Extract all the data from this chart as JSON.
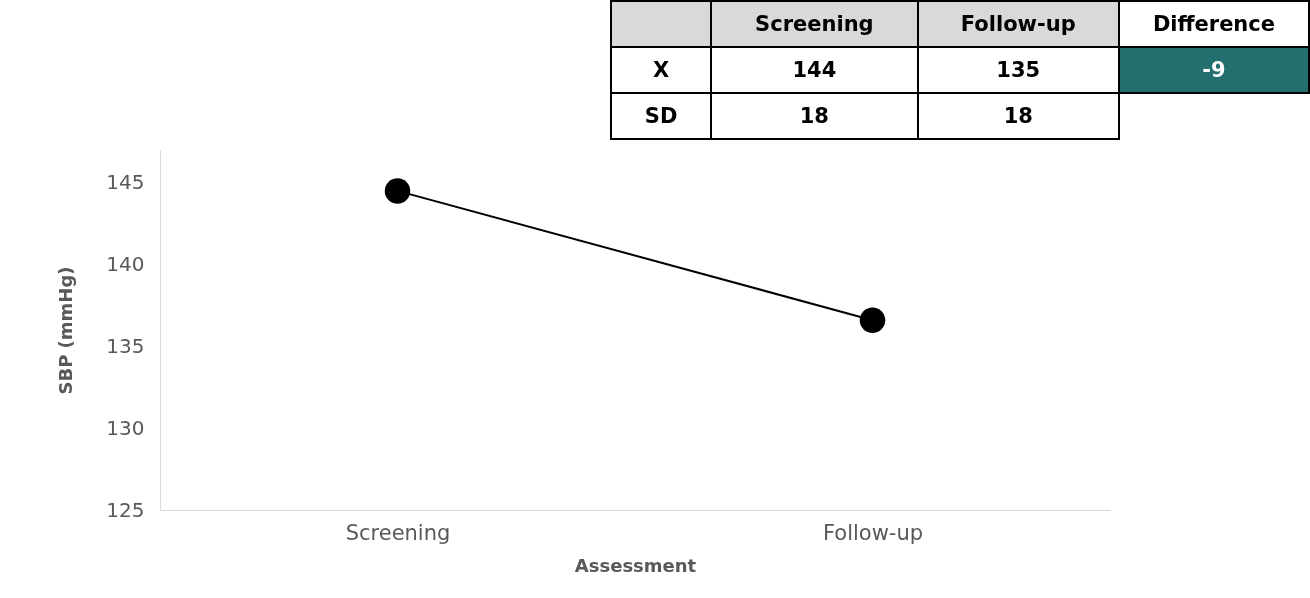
{
  "chart_data": [
    {
      "type": "other",
      "categories": [
        "Screening",
        "Follow-up",
        "Difference"
      ],
      "y_categories": [
        "X",
        "SD"
      ],
      "cell_labels": [
        [
          "144",
          "135",
          "-9"
        ],
        [
          "18",
          "18",
          null
        ]
      ],
      "colors": [
        [
          null,
          null,
          "#236e6e"
        ],
        [
          null,
          null,
          null
        ]
      ]
    },
    {
      "type": "line",
      "categories": [
        "Screening",
        "Follow-up"
      ],
      "series": [
        {
          "color": "#000000",
          "values": [
            144.5,
            136.6
          ]
        }
      ],
      "ylim": [
        125,
        147
      ],
      "yticks": [
        125,
        130,
        135,
        140,
        145
      ],
      "xlabel": "Assessment",
      "ylabel": "SBP (mmHg)",
      "marker": "circle",
      "line_style": "solid",
      "grid": false
    }
  ]
}
